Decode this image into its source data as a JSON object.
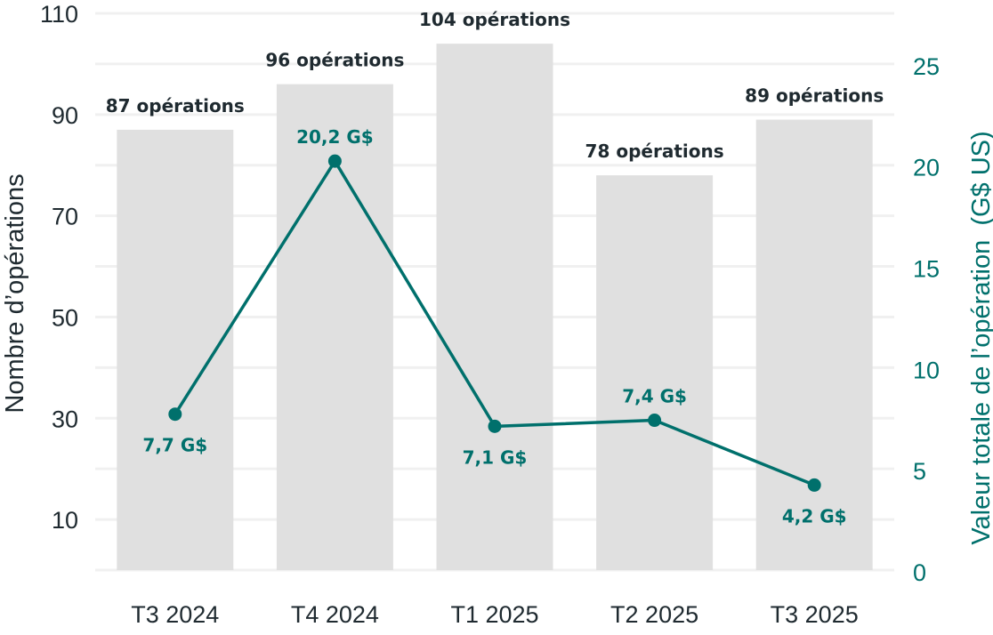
{
  "chart_data": {
    "type": "bar+line",
    "categories": [
      "T3 2024",
      "T4 2024",
      "T1 2025",
      "T2 2025",
      "T3 2025"
    ],
    "series": [
      {
        "axis": "left",
        "kind": "bar",
        "values": [
          87,
          96,
          104,
          78,
          89
        ],
        "labels": [
          "87 opérations",
          "96 opérations",
          "104 opérations",
          "78 opérations",
          "89 opérations"
        ]
      },
      {
        "axis": "right",
        "kind": "line",
        "values": [
          7.7,
          20.2,
          7.1,
          7.4,
          4.2
        ],
        "labels": [
          "7,7 G$",
          "20,2 G$",
          "7,1 G$",
          "7,4 G$",
          "4,2 G$"
        ]
      }
    ],
    "ylabel": "Nombre d’opérations",
    "y2label": "Valeur totale de l’opération  (G$ US)",
    "ylim": [
      0,
      110
    ],
    "y2lim": [
      0,
      27.5
    ],
    "yticks": [
      10,
      30,
      50,
      70,
      90,
      110
    ],
    "y2ticks": [
      0,
      5,
      10,
      15,
      20,
      25
    ],
    "grid": true,
    "colors": {
      "bar": "#e0e0e0",
      "line": "#00706c",
      "text": "#1f2a30",
      "grid": "#f0f0f0"
    }
  }
}
